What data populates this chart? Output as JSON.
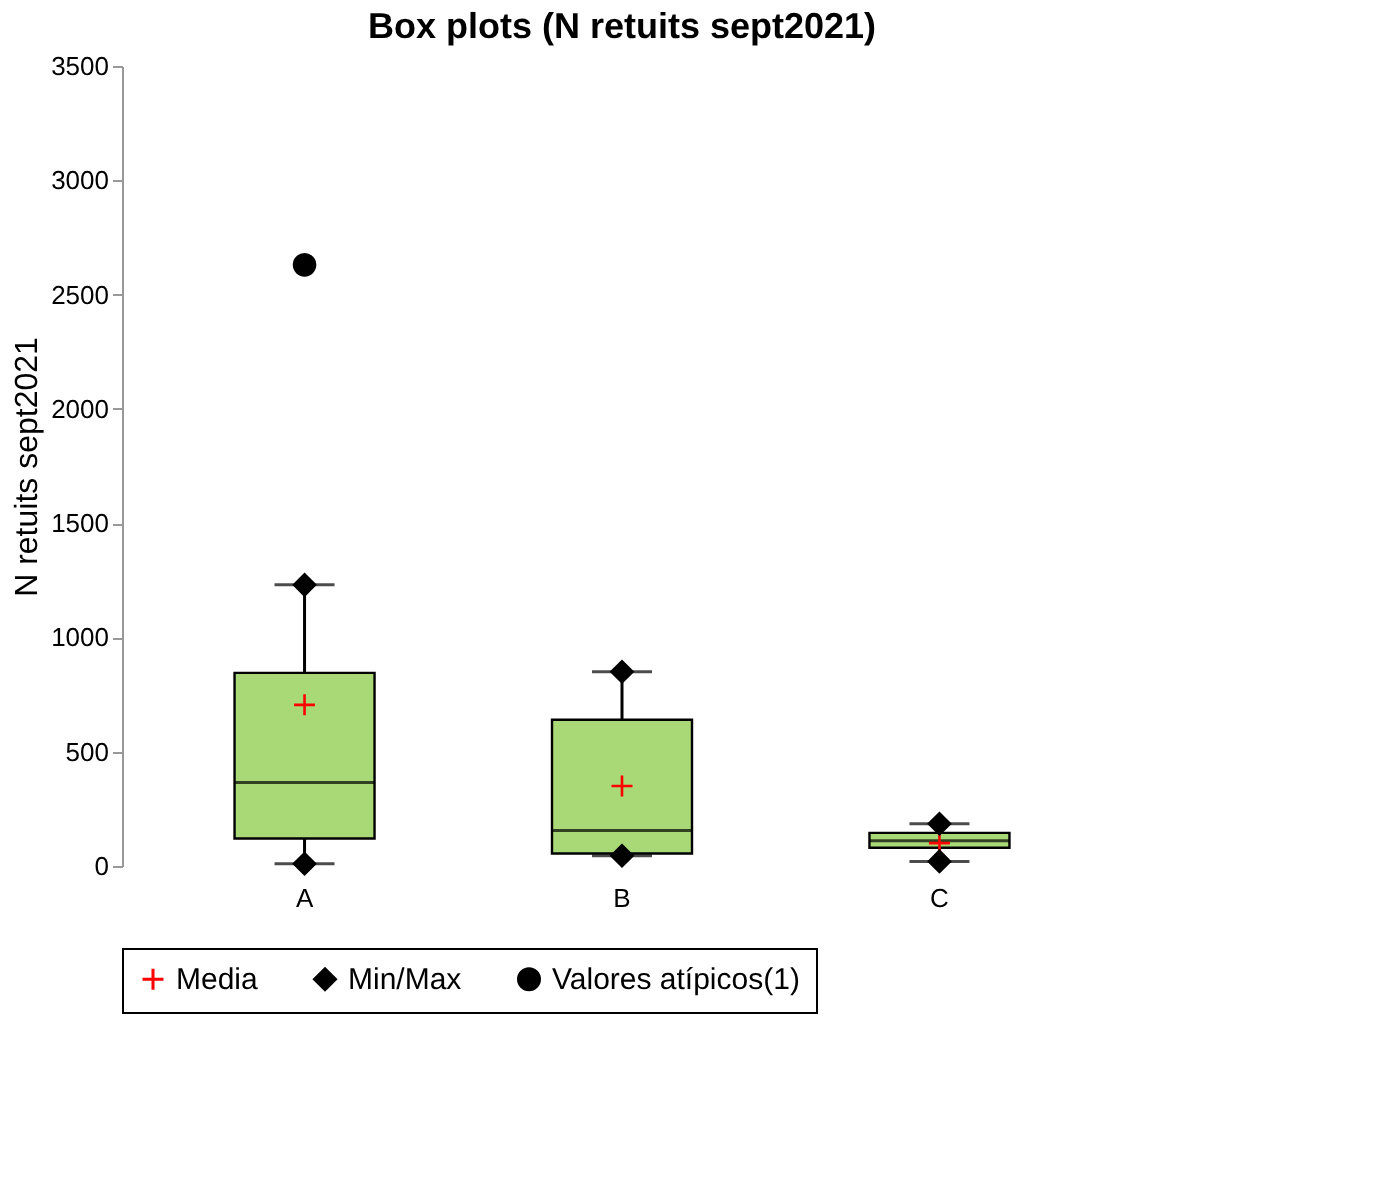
{
  "chart_data": {
    "type": "box",
    "title": "Box plots (N retuits sept2021)",
    "ylabel": "N retuits  sept2021",
    "categories": [
      "A",
      "B",
      "C"
    ],
    "ylim": [
      0,
      3500
    ],
    "yticks": [
      0,
      500,
      1000,
      1500,
      2000,
      2500,
      3000,
      3500
    ],
    "grid": false,
    "legend": "bottom",
    "series": [
      {
        "color": "#a9d977",
        "boxes": [
          {
            "low": 10,
            "q1": 120,
            "median": 365,
            "q3": 845,
            "high": 1230
          },
          {
            "low": 45,
            "q1": 55,
            "median": 155,
            "q3": 640,
            "high": 850
          },
          {
            "low": 20,
            "q1": 80,
            "median": 110,
            "q3": 145,
            "high": 185
          }
        ]
      },
      {
        "type": "scatter",
        "name": "Media",
        "color": "#ff0000",
        "marker": "cross",
        "x": [
          "A",
          "B",
          "C"
        ],
        "values": [
          705,
          350,
          100
        ]
      },
      {
        "type": "scatter",
        "name": "Min/Max",
        "color": "#000000",
        "marker": "diamond",
        "x": [
          "A",
          "A",
          "B",
          "B",
          "C",
          "C"
        ],
        "values": [
          10,
          1230,
          45,
          850,
          20,
          185
        ]
      },
      {
        "type": "scatter",
        "name": "Valores atípicos(1)",
        "color": "#000000",
        "marker": "circle",
        "x": [
          "A"
        ],
        "values": [
          2630
        ]
      }
    ]
  }
}
